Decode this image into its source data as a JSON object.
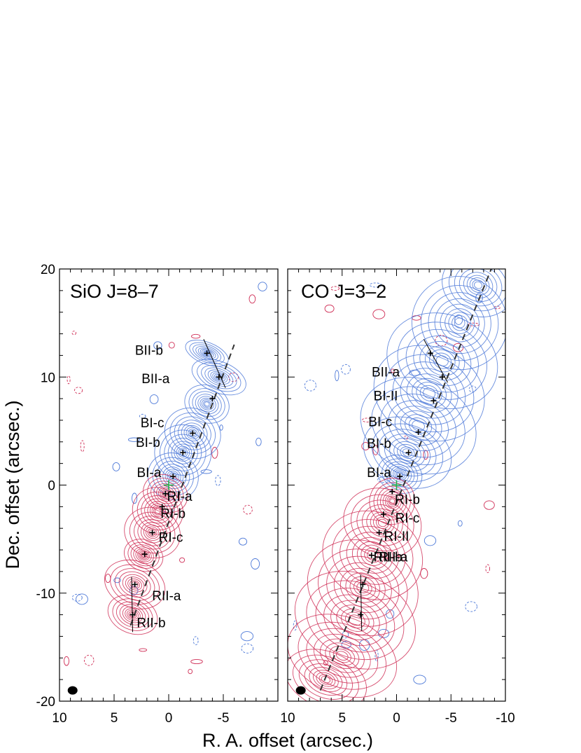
{
  "chart_data": [
    {
      "type": "contour",
      "title": "SiO J=8–7",
      "xlim": [
        10,
        -10
      ],
      "ylim": [
        -20,
        20
      ],
      "x_ticks": [
        10,
        5,
        0,
        -5
      ],
      "y_ticks": [
        20,
        10,
        0,
        -10,
        -20
      ],
      "y_tick_labels": [
        "20",
        "10",
        "0",
        "-10",
        "-20"
      ],
      "x_tick_labels": [
        "10",
        "5",
        "0",
        "-5"
      ],
      "source": [
        0.0,
        0.0
      ],
      "jet_axis": [
        [
          3.5,
          -13.0
        ],
        [
          -6.0,
          13.0
        ]
      ],
      "colors": {
        "blue": "#4d79d8",
        "red": "#cf2d55",
        "source": "#22b14c"
      },
      "blue_lobe": [
        {
          "x": -0.4,
          "y": 0.8,
          "sx": 0.9,
          "sy": 1.5
        },
        {
          "x": -1.3,
          "y": 3.0,
          "sx": 1.0,
          "sy": 1.8
        },
        {
          "x": -2.2,
          "y": 4.8,
          "sx": 1.0,
          "sy": 1.6
        },
        {
          "x": -3.5,
          "y": 7.5,
          "sx": 0.8,
          "sy": 1.2
        },
        {
          "x": -4.6,
          "y": 10.0,
          "sx": 1.0,
          "sy": 1.0
        },
        {
          "x": -3.5,
          "y": 12.2,
          "sx": 0.8,
          "sy": 0.7
        }
      ],
      "red_lobe": [
        {
          "x": 0.3,
          "y": -0.8,
          "sx": 0.8,
          "sy": 1.2
        },
        {
          "x": 1.0,
          "y": -2.4,
          "sx": 0.9,
          "sy": 1.5
        },
        {
          "x": 1.5,
          "y": -4.4,
          "sx": 1.0,
          "sy": 1.6
        },
        {
          "x": 2.3,
          "y": -6.5,
          "sx": 0.7,
          "sy": 1.0
        },
        {
          "x": 3.1,
          "y": -9.2,
          "sx": 1.1,
          "sy": 1.5
        },
        {
          "x": 3.3,
          "y": -12.0,
          "sx": 0.9,
          "sy": 1.2
        }
      ],
      "knots": [
        {
          "label": "BII-b",
          "x": -3.5,
          "y": 12.2,
          "lx": 1.8,
          "ly": 12.5
        },
        {
          "label": "BII-a",
          "x": -4.6,
          "y": 10.0,
          "lx": 1.2,
          "ly": 9.9
        },
        {
          "label": "BI-c",
          "x": -2.2,
          "y": 4.8,
          "lx": 1.5,
          "ly": 5.8
        },
        {
          "label": "BI-b",
          "x": -1.3,
          "y": 3.0,
          "lx": 1.9,
          "ly": 4.0
        },
        {
          "label": "BI-a",
          "x": -0.4,
          "y": 0.8,
          "lx": 1.8,
          "ly": 1.2
        },
        {
          "label": "RI-a",
          "x": 0.3,
          "y": -0.8,
          "lx": -1.0,
          "ly": -1.0
        },
        {
          "label": "RI-b",
          "x": 0.6,
          "y": -2.0,
          "lx": -0.4,
          "ly": -2.6
        },
        {
          "label": "RI-c",
          "x": 1.5,
          "y": -4.4,
          "lx": -0.2,
          "ly": -4.8
        },
        {
          "label": "RII-a",
          "x": 3.1,
          "y": -9.2,
          "lx": 0.2,
          "ly": -10.2
        },
        {
          "label": "RII-b",
          "x": 3.3,
          "y": -12.0,
          "lx": 1.6,
          "ly": -12.7
        }
      ],
      "extra_crosses": [
        {
          "x": -4.0,
          "y": 8.0
        },
        {
          "x": 2.2,
          "y": -6.4
        }
      ],
      "bow_lines": [
        [
          [
            -3.2,
            13.5
          ],
          [
            -5.2,
            9.0
          ]
        ],
        [
          [
            3.4,
            -8.5
          ],
          [
            3.3,
            -13.6
          ]
        ]
      ],
      "beam": {
        "x": 8.8,
        "y": -19.0
      }
    },
    {
      "type": "contour",
      "title": "CO J=3–2",
      "xlim": [
        10,
        -10
      ],
      "ylim": [
        -20,
        20
      ],
      "x_ticks": [
        10,
        5,
        0,
        -5,
        -10
      ],
      "x_tick_labels": [
        "10",
        "5",
        "0",
        "-5",
        "-10"
      ],
      "source": [
        0.0,
        0.0
      ],
      "jet_axis": [
        [
          7.0,
          -19.0
        ],
        [
          -8.7,
          20.0
        ]
      ],
      "colors": {
        "blue": "#4d79d8",
        "red": "#cf2d55",
        "source": "#22b14c"
      },
      "blue_lobe": [
        {
          "x": -0.3,
          "y": 1.0,
          "sx": 0.8,
          "sy": 1.2
        },
        {
          "x": -1.0,
          "y": 3.0,
          "sx": 1.6,
          "sy": 2.2
        },
        {
          "x": -2.0,
          "y": 5.5,
          "sx": 2.1,
          "sy": 3.0
        },
        {
          "x": -3.0,
          "y": 8.5,
          "sx": 2.0,
          "sy": 3.0
        },
        {
          "x": -4.2,
          "y": 11.5,
          "sx": 2.0,
          "sy": 3.0
        },
        {
          "x": -5.8,
          "y": 15.0,
          "sx": 1.7,
          "sy": 3.0
        },
        {
          "x": -7.5,
          "y": 18.5,
          "sx": 1.3,
          "sy": 2.0
        }
      ],
      "red_lobe": [
        {
          "x": 0.4,
          "y": -1.5,
          "sx": 0.8,
          "sy": 1.5
        },
        {
          "x": 1.3,
          "y": -3.5,
          "sx": 1.4,
          "sy": 2.2
        },
        {
          "x": 2.2,
          "y": -6.5,
          "sx": 1.8,
          "sy": 2.8
        },
        {
          "x": 3.1,
          "y": -9.5,
          "sx": 2.0,
          "sy": 3.0
        },
        {
          "x": 3.8,
          "y": -12.5,
          "sx": 2.2,
          "sy": 3.0
        },
        {
          "x": 5.0,
          "y": -15.8,
          "sx": 2.0,
          "sy": 2.5
        },
        {
          "x": 6.5,
          "y": -18.0,
          "sx": 1.5,
          "sy": 1.8
        }
      ],
      "knots": [
        {
          "label": "BII-a",
          "x": -4.2,
          "y": 10.0,
          "lx": 1.0,
          "ly": 10.5
        },
        {
          "label": "BI-II",
          "x": -3.4,
          "y": 7.8,
          "lx": 1.0,
          "ly": 8.3
        },
        {
          "label": "BI-c",
          "x": -2.0,
          "y": 4.9,
          "lx": 1.5,
          "ly": 5.9
        },
        {
          "label": "BI-b",
          "x": -1.1,
          "y": 3.0,
          "lx": 1.6,
          "ly": 3.9
        },
        {
          "label": "BI-a",
          "x": -0.3,
          "y": 0.8,
          "lx": 1.6,
          "ly": 1.2
        },
        {
          "label": "RI-b",
          "x": 1.2,
          "y": -2.7,
          "lx": -1.0,
          "ly": -1.3
        },
        {
          "label": "RI-c",
          "x": 1.6,
          "y": -4.4,
          "lx": -1.0,
          "ly": -3.0
        },
        {
          "label": "RI-II",
          "x": 2.3,
          "y": -6.5,
          "lx": 0.0,
          "ly": -4.7
        },
        {
          "label": "RII-a",
          "x": 3.1,
          "y": -9.2,
          "lx": 0.3,
          "ly": -6.6
        },
        {
          "label": "RII-b",
          "x": 3.3,
          "y": -12.0,
          "lx": 0.8,
          "ly": -6.6
        }
      ],
      "extra_crosses": [
        {
          "x": -3.1,
          "y": 12.2
        },
        {
          "x": 0.4,
          "y": -0.6
        }
      ],
      "bow_lines": [
        [
          [
            -2.5,
            13.5
          ],
          [
            -4.7,
            9.5
          ]
        ],
        [
          [
            3.3,
            -8.3
          ],
          [
            3.2,
            -13.5
          ]
        ]
      ],
      "beam": {
        "x": 8.8,
        "y": -19.0
      }
    }
  ],
  "axes": {
    "xlabel": "R. A. offset (arcsec.)",
    "ylabel": "Dec. offset (arcsec.)"
  },
  "panels": {
    "left_title": "SiO J=8–7",
    "right_title": "CO J=3–2"
  }
}
